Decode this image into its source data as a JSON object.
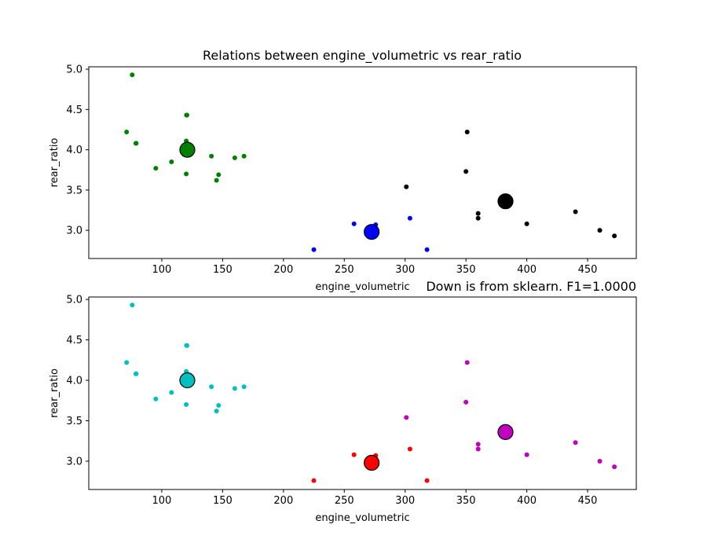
{
  "chart_data": [
    {
      "type": "scatter",
      "title": "Relations between engine_volumetric vs rear_ratio",
      "xlabel": "engine_volumetric",
      "ylabel": "rear_ratio",
      "xlim": [
        40,
        490
      ],
      "ylim": [
        2.65,
        5.03
      ],
      "xticks": [
        100,
        150,
        200,
        250,
        300,
        350,
        400,
        450
      ],
      "xtick_labels": [
        "100",
        "150",
        "200",
        "250",
        "300",
        "350",
        "400",
        "450"
      ],
      "yticks": [
        3.0,
        3.5,
        4.0,
        4.5,
        5.0
      ],
      "ytick_labels": [
        "3.0",
        "3.5",
        "4.0",
        "4.5",
        "5.0"
      ],
      "grid": false,
      "series": [
        {
          "color": "#008000",
          "points": [
            [
              75.7,
              4.93
            ],
            [
              71.1,
              4.22
            ],
            [
              78.7,
              4.08
            ],
            [
              79.0,
              4.08
            ],
            [
              120.3,
              4.43
            ],
            [
              120.7,
              4.43
            ],
            [
              120.1,
              4.11
            ],
            [
              95.1,
              3.77
            ],
            [
              108.0,
              3.85
            ],
            [
              140.8,
              3.92
            ],
            [
              160.0,
              3.9
            ],
            [
              167.6,
              3.92
            ],
            [
              146.7,
              3.69
            ],
            [
              120.1,
              3.7
            ],
            [
              145.0,
              3.62
            ]
          ]
        },
        {
          "color": "#0000ff",
          "points": [
            [
              225.0,
              2.76
            ],
            [
              258.0,
              3.08
            ],
            [
              275.8,
              3.07
            ],
            [
              304.0,
              3.15
            ],
            [
              318.0,
              2.76
            ]
          ]
        },
        {
          "color": "#000000",
          "points": [
            [
              351.0,
              4.22
            ],
            [
              350.0,
              3.73
            ],
            [
              301.0,
              3.54
            ],
            [
              360.0,
              3.21
            ],
            [
              360.0,
              3.15
            ],
            [
              400.0,
              3.08
            ],
            [
              440.0,
              3.23
            ],
            [
              460.0,
              3.0
            ],
            [
              472.0,
              2.93
            ]
          ]
        }
      ],
      "centroids": [
        {
          "x": 121.0,
          "y": 4.0,
          "color": "#008000"
        },
        {
          "x": 272.5,
          "y": 2.98,
          "color": "#0000ff"
        },
        {
          "x": 382.5,
          "y": 3.36,
          "color": "#000000"
        }
      ]
    },
    {
      "type": "scatter",
      "title": "Down is from sklearn. F1=1.0000",
      "xlabel": "engine_volumetric",
      "ylabel": "rear_ratio",
      "xlim": [
        40,
        490
      ],
      "ylim": [
        2.65,
        5.03
      ],
      "xticks": [
        100,
        150,
        200,
        250,
        300,
        350,
        400,
        450
      ],
      "xtick_labels": [
        "100",
        "150",
        "200",
        "250",
        "300",
        "350",
        "400",
        "450"
      ],
      "yticks": [
        3.0,
        3.5,
        4.0,
        4.5,
        5.0
      ],
      "ytick_labels": [
        "3.0",
        "3.5",
        "4.0",
        "4.5",
        "5.0"
      ],
      "grid": false,
      "series": [
        {
          "color": "#00bfbf",
          "points": [
            [
              75.7,
              4.93
            ],
            [
              71.1,
              4.22
            ],
            [
              78.7,
              4.08
            ],
            [
              79.0,
              4.08
            ],
            [
              120.3,
              4.43
            ],
            [
              120.7,
              4.43
            ],
            [
              120.1,
              4.11
            ],
            [
              95.1,
              3.77
            ],
            [
              108.0,
              3.85
            ],
            [
              140.8,
              3.92
            ],
            [
              160.0,
              3.9
            ],
            [
              167.6,
              3.92
            ],
            [
              146.7,
              3.69
            ],
            [
              120.1,
              3.7
            ],
            [
              145.0,
              3.62
            ]
          ]
        },
        {
          "color": "#ff0000",
          "points": [
            [
              225.0,
              2.76
            ],
            [
              258.0,
              3.08
            ],
            [
              275.8,
              3.07
            ],
            [
              304.0,
              3.15
            ],
            [
              318.0,
              2.76
            ]
          ]
        },
        {
          "color": "#bf00bf",
          "points": [
            [
              351.0,
              4.22
            ],
            [
              350.0,
              3.73
            ],
            [
              301.0,
              3.54
            ],
            [
              360.0,
              3.21
            ],
            [
              360.0,
              3.15
            ],
            [
              400.0,
              3.08
            ],
            [
              440.0,
              3.23
            ],
            [
              460.0,
              3.0
            ],
            [
              472.0,
              2.93
            ]
          ]
        }
      ],
      "centroids": [
        {
          "x": 121.0,
          "y": 4.0,
          "color": "#00bfbf"
        },
        {
          "x": 272.5,
          "y": 2.98,
          "color": "#ff0000"
        },
        {
          "x": 382.5,
          "y": 3.36,
          "color": "#bf00bf"
        }
      ]
    }
  ]
}
